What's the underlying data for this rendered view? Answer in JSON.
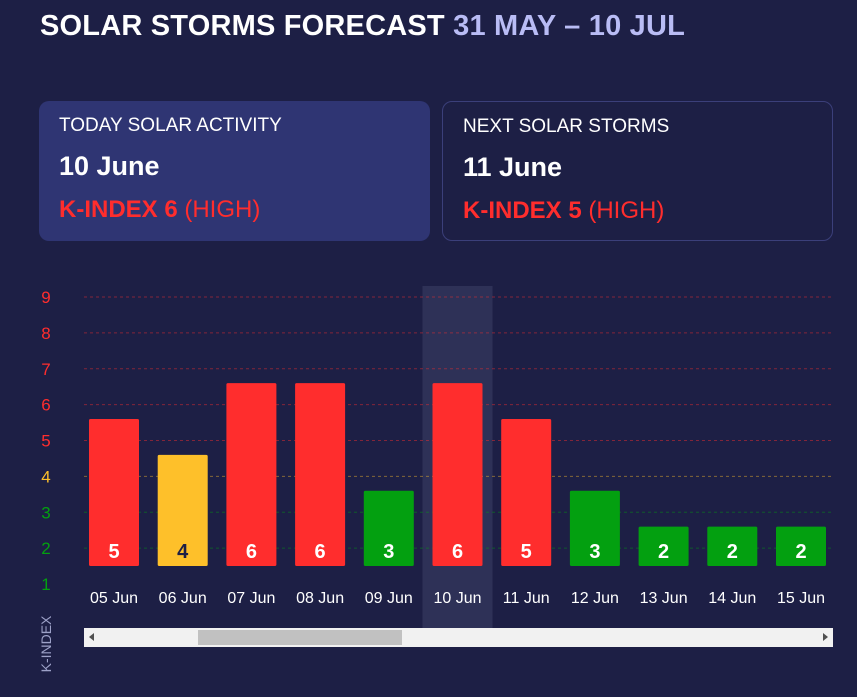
{
  "header": {
    "title": "SOLAR STORMS FORECAST",
    "range": "31 MAY – 10 JUL"
  },
  "cards": {
    "today": {
      "label": "TODAY SOLAR ACTIVITY",
      "date": "10 June",
      "k_label": "K-INDEX 6",
      "level": "(HIGH)"
    },
    "next": {
      "label": "NEXT SOLAR STORMS",
      "date": "11 June",
      "k_label": "K-INDEX 5",
      "level": "(HIGH)"
    }
  },
  "colors": {
    "high": "#ff2d2d",
    "moderate": "#fec02a",
    "low": "#03a010",
    "background": "#1d1f45",
    "highlight": "#2e3157"
  },
  "chart_data": {
    "type": "bar",
    "categories": [
      "05 Jun",
      "06 Jun",
      "07 Jun",
      "08 Jun",
      "09 Jun",
      "10 Jun",
      "11 Jun",
      "12 Jun",
      "13 Jun",
      "14 Jun",
      "15 Jun"
    ],
    "values": [
      5,
      4,
      6,
      6,
      3,
      6,
      5,
      3,
      2,
      2,
      2
    ],
    "highlighted_category": "10 Jun",
    "ylabel": "K-INDEX",
    "yticks": [
      1,
      2,
      3,
      4,
      5,
      6,
      7,
      8,
      9
    ],
    "ylim": [
      1,
      9
    ],
    "grid": true,
    "horizontal_scroll": true
  }
}
